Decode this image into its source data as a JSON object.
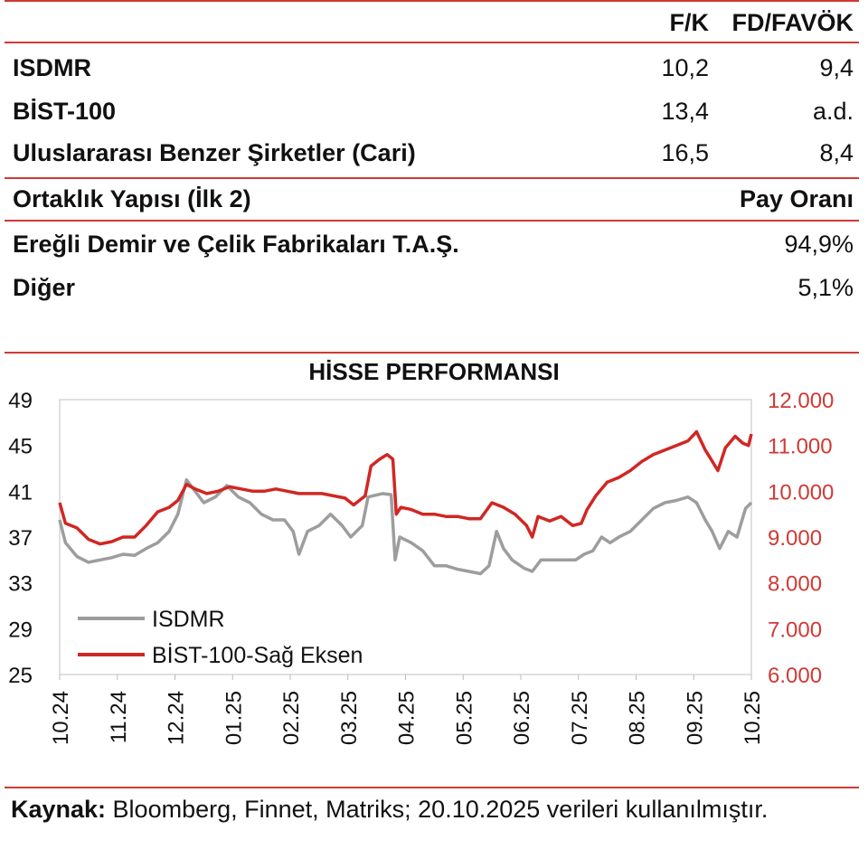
{
  "table": {
    "header": {
      "col1": "F/K",
      "col2": "FD/FAVÖK"
    },
    "rows": [
      {
        "name": "ISDMR",
        "v1": "10,2",
        "v2": "9,4"
      },
      {
        "name": "BİST-100",
        "v1": "13,4",
        "v2": "a.d."
      },
      {
        "name": "Uluslararası Benzer Şirketler (Cari)",
        "v1": "16,5",
        "v2": "8,4"
      }
    ]
  },
  "ownership": {
    "title": "Ortaklık Yapısı (İlk 2)",
    "value_header": "Pay Oranı",
    "rows": [
      {
        "name": "Ereğli Demir ve Çelik Fabrikaları T.A.Ş.",
        "value": "94,9%"
      },
      {
        "name": "Diğer",
        "value": "5,1%"
      }
    ]
  },
  "colors": {
    "accent": "#d03a35",
    "isdmr": "#9d9d9d",
    "bist": "#d02723",
    "axis_right": "#d03a35"
  },
  "chart_data": {
    "type": "line",
    "title": "HİSSE PERFORMANSI",
    "x_ticks": [
      "10.24",
      "11.24",
      "12.24",
      "01.25",
      "02.25",
      "03.25",
      "04.25",
      "05.25",
      "06.25",
      "07.25",
      "08.25",
      "09.25",
      "10.25"
    ],
    "y_left": {
      "ticks": [
        "49",
        "45",
        "41",
        "37",
        "33",
        "29",
        "25"
      ],
      "min": 25,
      "max": 49
    },
    "y_right": {
      "ticks": [
        "12.000",
        "11.000",
        "10.000",
        "9.000",
        "8.000",
        "7.000",
        "6.000"
      ],
      "min": 6000,
      "max": 12000
    },
    "x_range": [
      0,
      12
    ],
    "series": [
      {
        "name": "ISDMR",
        "axis": "left",
        "color": "#9d9d9d",
        "points": [
          [
            0,
            38.5
          ],
          [
            0.1,
            36.5
          ],
          [
            0.3,
            35.3
          ],
          [
            0.5,
            34.8
          ],
          [
            0.7,
            35.0
          ],
          [
            0.9,
            35.2
          ],
          [
            1.1,
            35.5
          ],
          [
            1.3,
            35.4
          ],
          [
            1.5,
            36.0
          ],
          [
            1.7,
            36.5
          ],
          [
            1.9,
            37.5
          ],
          [
            2.05,
            39.0
          ],
          [
            2.2,
            42.0
          ],
          [
            2.35,
            41.0
          ],
          [
            2.5,
            40.0
          ],
          [
            2.7,
            40.5
          ],
          [
            2.9,
            41.5
          ],
          [
            3.1,
            40.5
          ],
          [
            3.3,
            40.0
          ],
          [
            3.5,
            39.0
          ],
          [
            3.7,
            38.5
          ],
          [
            3.9,
            38.5
          ],
          [
            4.05,
            37.5
          ],
          [
            4.15,
            35.5
          ],
          [
            4.3,
            37.5
          ],
          [
            4.5,
            38.0
          ],
          [
            4.7,
            39.0
          ],
          [
            4.9,
            38.0
          ],
          [
            5.05,
            37.0
          ],
          [
            5.25,
            38.0
          ],
          [
            5.35,
            40.5
          ],
          [
            5.6,
            40.8
          ],
          [
            5.75,
            40.7
          ],
          [
            5.82,
            35.0
          ],
          [
            5.9,
            37.0
          ],
          [
            6.1,
            36.5
          ],
          [
            6.3,
            35.8
          ],
          [
            6.5,
            34.5
          ],
          [
            6.7,
            34.5
          ],
          [
            6.9,
            34.2
          ],
          [
            7.1,
            34.0
          ],
          [
            7.3,
            33.8
          ],
          [
            7.45,
            34.5
          ],
          [
            7.58,
            37.5
          ],
          [
            7.7,
            36.0
          ],
          [
            7.85,
            35.0
          ],
          [
            8.05,
            34.3
          ],
          [
            8.2,
            34.0
          ],
          [
            8.35,
            35.0
          ],
          [
            8.55,
            35.0
          ],
          [
            8.75,
            35.0
          ],
          [
            8.95,
            35.0
          ],
          [
            9.1,
            35.5
          ],
          [
            9.25,
            35.8
          ],
          [
            9.4,
            37.0
          ],
          [
            9.55,
            36.5
          ],
          [
            9.7,
            37.0
          ],
          [
            9.9,
            37.5
          ],
          [
            10.1,
            38.5
          ],
          [
            10.3,
            39.5
          ],
          [
            10.5,
            40.0
          ],
          [
            10.7,
            40.2
          ],
          [
            10.9,
            40.5
          ],
          [
            11.05,
            40.0
          ],
          [
            11.2,
            38.5
          ],
          [
            11.32,
            37.5
          ],
          [
            11.45,
            36.0
          ],
          [
            11.6,
            37.5
          ],
          [
            11.75,
            37.0
          ],
          [
            11.9,
            39.5
          ],
          [
            12.0,
            40.0
          ]
        ]
      },
      {
        "name": "BİST-100-Sağ Eksen",
        "axis": "right",
        "color": "#d02723",
        "points": [
          [
            0,
            9750
          ],
          [
            0.1,
            9300
          ],
          [
            0.3,
            9200
          ],
          [
            0.5,
            8950
          ],
          [
            0.7,
            8850
          ],
          [
            0.9,
            8900
          ],
          [
            1.1,
            9000
          ],
          [
            1.3,
            9000
          ],
          [
            1.5,
            9250
          ],
          [
            1.7,
            9550
          ],
          [
            1.9,
            9650
          ],
          [
            2.05,
            9800
          ],
          [
            2.2,
            10150
          ],
          [
            2.35,
            10050
          ],
          [
            2.55,
            9950
          ],
          [
            2.75,
            10000
          ],
          [
            2.95,
            10100
          ],
          [
            3.15,
            10050
          ],
          [
            3.35,
            10000
          ],
          [
            3.55,
            10000
          ],
          [
            3.75,
            10050
          ],
          [
            3.95,
            10000
          ],
          [
            4.15,
            9950
          ],
          [
            4.35,
            9950
          ],
          [
            4.55,
            9950
          ],
          [
            4.75,
            9900
          ],
          [
            4.95,
            9850
          ],
          [
            5.1,
            9700
          ],
          [
            5.3,
            9900
          ],
          [
            5.4,
            10550
          ],
          [
            5.55,
            10700
          ],
          [
            5.68,
            10800
          ],
          [
            5.78,
            10700
          ],
          [
            5.84,
            9500
          ],
          [
            5.92,
            9650
          ],
          [
            6.1,
            9600
          ],
          [
            6.3,
            9500
          ],
          [
            6.5,
            9500
          ],
          [
            6.7,
            9450
          ],
          [
            6.9,
            9450
          ],
          [
            7.1,
            9400
          ],
          [
            7.3,
            9400
          ],
          [
            7.5,
            9750
          ],
          [
            7.7,
            9650
          ],
          [
            7.9,
            9500
          ],
          [
            8.1,
            9250
          ],
          [
            8.2,
            9000
          ],
          [
            8.3,
            9450
          ],
          [
            8.5,
            9350
          ],
          [
            8.7,
            9450
          ],
          [
            8.9,
            9250
          ],
          [
            9.05,
            9300
          ],
          [
            9.15,
            9600
          ],
          [
            9.3,
            9900
          ],
          [
            9.5,
            10200
          ],
          [
            9.7,
            10300
          ],
          [
            9.9,
            10450
          ],
          [
            10.1,
            10650
          ],
          [
            10.3,
            10800
          ],
          [
            10.5,
            10900
          ],
          [
            10.7,
            11000
          ],
          [
            10.9,
            11100
          ],
          [
            11.05,
            11300
          ],
          [
            11.2,
            10900
          ],
          [
            11.3,
            10700
          ],
          [
            11.42,
            10450
          ],
          [
            11.55,
            10950
          ],
          [
            11.72,
            11200
          ],
          [
            11.85,
            11050
          ],
          [
            11.95,
            11000
          ],
          [
            12.0,
            11250
          ]
        ]
      }
    ],
    "legend": {
      "placement": "bottom-left"
    },
    "grid": false
  },
  "source": {
    "label": "Kaynak:",
    "text": " Bloomberg, Finnet, Matriks; 20.10.2025 verileri kullanılmıştır."
  }
}
